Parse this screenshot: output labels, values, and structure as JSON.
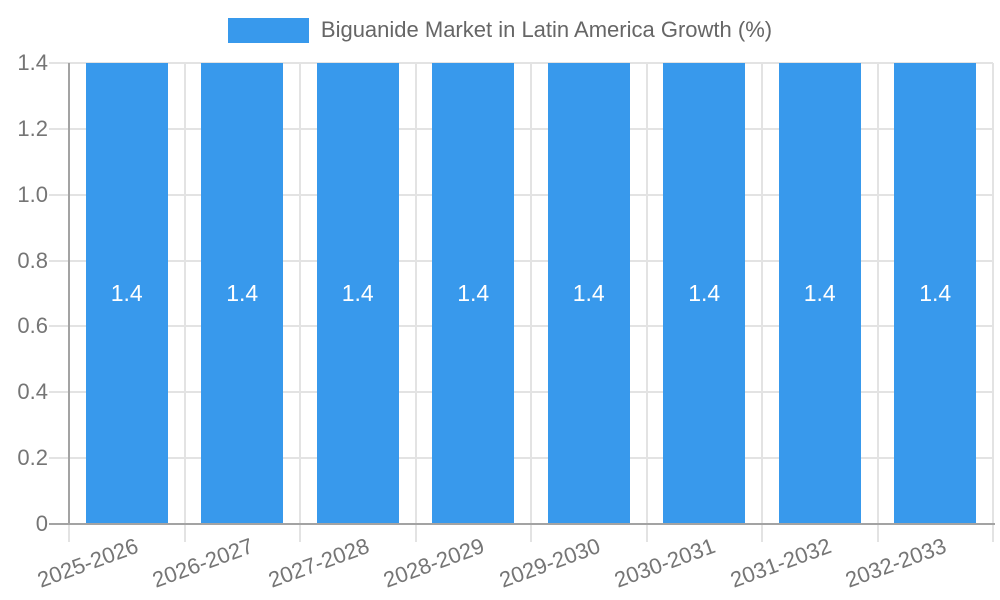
{
  "chart_data": {
    "type": "bar",
    "title": "Biguanide Market in Latin America Growth (%)",
    "legend": {
      "position": "top",
      "entries": [
        "Biguanide Market in Latin America Growth (%)"
      ]
    },
    "categories": [
      "2025-2026",
      "2026-2027",
      "2027-2028",
      "2028-2029",
      "2029-2030",
      "2030-2031",
      "2031-2032",
      "2032-2033"
    ],
    "series": [
      {
        "name": "Biguanide Market in Latin America Growth (%)",
        "values": [
          1.4,
          1.4,
          1.4,
          1.4,
          1.4,
          1.4,
          1.4,
          1.4
        ]
      }
    ],
    "bar_value_labels": [
      "1.4",
      "1.4",
      "1.4",
      "1.4",
      "1.4",
      "1.4",
      "1.4",
      "1.4"
    ],
    "xlabel": "",
    "ylabel": "",
    "ylim": [
      0,
      1.4
    ],
    "ytick_step": 0.2,
    "yticks": [
      "0",
      "0.2",
      "0.4",
      "0.6",
      "0.8",
      "1.0",
      "1.2",
      "1.4"
    ],
    "grid": true,
    "x_label_rotation_deg": -20,
    "colors": {
      "bar": "#3899EC",
      "grid": "#E3E3E3",
      "axis": "#A3A3A3",
      "tick_label": "#757575",
      "legend_text": "#666666",
      "bar_label": "#FFFFFF",
      "background": "#FFFFFF"
    }
  }
}
